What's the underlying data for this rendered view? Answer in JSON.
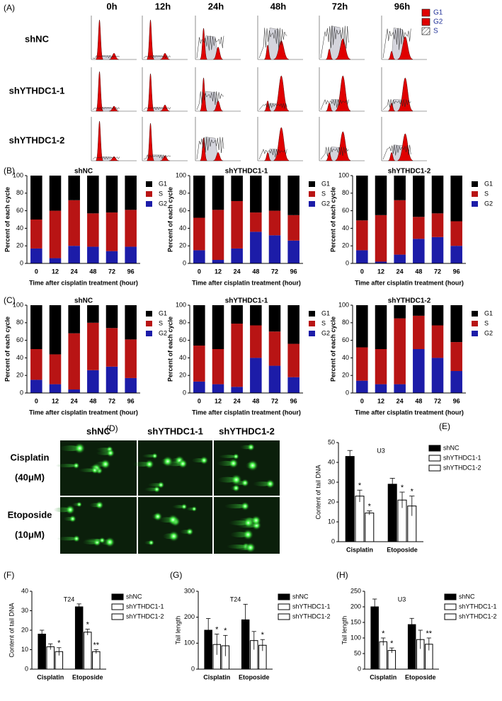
{
  "panel_a": {
    "label": "(A)",
    "columns": [
      "0h",
      "12h",
      "24h",
      "48h",
      "72h",
      "96h"
    ],
    "rows": [
      "shNC",
      "shYTHDC1-1",
      "shYTHDC1-2"
    ],
    "legend": [
      {
        "name": "G1",
        "color": "#e00000"
      },
      {
        "name": "G2",
        "color": "#e00000"
      },
      {
        "name": "S",
        "color": "hatch"
      }
    ]
  },
  "panel_d": {
    "label": "(D)",
    "columns": [
      "shNC",
      "shYTHDC1-1",
      "shYTHDC1-2"
    ],
    "rows": [
      {
        "drug": "Cisplatin",
        "dose": "(40μM)"
      },
      {
        "drug": "Etoposide",
        "dose": "(10μM)"
      }
    ]
  },
  "chart_data": [
    {
      "type": "stacked_bar",
      "label": "(B)",
      "title": "shNC",
      "x_label": "Time after cisplatin treatment (hour)",
      "y_label": "Percent of each cycle",
      "categories": [
        "0",
        "12",
        "24",
        "48",
        "72",
        "96"
      ],
      "ylim": [
        0,
        100
      ],
      "yticks": [
        0,
        20,
        40,
        60,
        80,
        100
      ],
      "series": [
        {
          "name": "G1",
          "color": "#000000",
          "values": [
            50,
            40,
            28,
            43,
            42,
            39
          ]
        },
        {
          "name": "S",
          "color": "#b81414",
          "values": [
            33,
            54,
            52,
            38,
            44,
            42
          ],
          "errors": [
            3,
            8,
            4,
            10,
            13,
            10
          ]
        },
        {
          "name": "G2",
          "color": "#1c1ca8",
          "values": [
            17,
            6,
            20,
            19,
            14,
            19
          ],
          "errors": [
            4,
            2,
            6,
            5,
            4,
            5
          ]
        }
      ]
    },
    {
      "type": "stacked_bar",
      "title": "shYTHDC1-1",
      "x_label": "Time after cisplatin treatment (hour)",
      "y_label": "Percent of each cycle",
      "categories": [
        "0",
        "12",
        "24",
        "48",
        "72",
        "96"
      ],
      "ylim": [
        0,
        100
      ],
      "yticks": [
        0,
        20,
        40,
        60,
        80,
        100
      ],
      "series": [
        {
          "name": "G1",
          "color": "#000000",
          "values": [
            48,
            39,
            29,
            42,
            40,
            45
          ]
        },
        {
          "name": "S",
          "color": "#b81414",
          "values": [
            37,
            57,
            54,
            22,
            28,
            29
          ],
          "errors": [
            5,
            3,
            8,
            8,
            2,
            4
          ]
        },
        {
          "name": "G2",
          "color": "#1c1ca8",
          "values": [
            15,
            4,
            17,
            36,
            32,
            26
          ],
          "errors": [
            4,
            1,
            7,
            12,
            8,
            12
          ]
        }
      ]
    },
    {
      "type": "stacked_bar",
      "title": "shYTHDC1-2",
      "x_label": "Time after cisplatin treatment (hour)",
      "y_label": "Percent of each cycle",
      "categories": [
        "0",
        "12",
        "24",
        "48",
        "72",
        "96"
      ],
      "ylim": [
        0,
        100
      ],
      "yticks": [
        0,
        20,
        40,
        60,
        80,
        100
      ],
      "series": [
        {
          "name": "G1",
          "color": "#000000",
          "values": [
            51,
            45,
            28,
            47,
            43,
            52
          ]
        },
        {
          "name": "S",
          "color": "#b81414",
          "values": [
            34,
            53,
            62,
            25,
            27,
            28
          ],
          "errors": [
            3,
            10,
            6,
            6,
            4,
            6
          ]
        },
        {
          "name": "G2",
          "color": "#1c1ca8",
          "values": [
            15,
            2,
            10,
            28,
            30,
            20
          ],
          "errors": [
            5,
            1,
            3,
            9,
            8,
            10
          ]
        }
      ]
    },
    {
      "type": "stacked_bar",
      "label": "(C)",
      "title": "shNC",
      "x_label": "Time after cisplatin treatment (hour)",
      "y_label": "Percent of each cycle",
      "categories": [
        "0",
        "12",
        "24",
        "48",
        "72",
        "96"
      ],
      "ylim": [
        0,
        100
      ],
      "yticks": [
        0,
        20,
        40,
        60,
        80,
        100
      ],
      "series": [
        {
          "name": "G1",
          "color": "#000000",
          "values": [
            50,
            56,
            32,
            20,
            26,
            39
          ]
        },
        {
          "name": "S",
          "color": "#b81414",
          "values": [
            35,
            34,
            64,
            54,
            44,
            44
          ],
          "errors": [
            2,
            0.5,
            2,
            6,
            1,
            4
          ]
        },
        {
          "name": "G2",
          "color": "#1c1ca8",
          "values": [
            15,
            10,
            4,
            26,
            30,
            17
          ],
          "errors": [
            3,
            1,
            2,
            8,
            6,
            3
          ]
        }
      ]
    },
    {
      "type": "stacked_bar",
      "title": "shYTHDC1-1",
      "x_label": "Time after cisplatin treatment (hour)",
      "y_label": "Percent of each cycle",
      "categories": [
        "0",
        "12",
        "24",
        "48",
        "72",
        "96"
      ],
      "ylim": [
        0,
        100
      ],
      "yticks": [
        0,
        20,
        40,
        60,
        80,
        100
      ],
      "series": [
        {
          "name": "G1",
          "color": "#000000",
          "values": [
            46,
            50,
            21,
            23,
            30,
            44
          ]
        },
        {
          "name": "S",
          "color": "#b81414",
          "values": [
            41,
            40,
            72,
            37,
            39,
            38
          ],
          "errors": [
            3,
            1,
            4,
            3,
            2,
            1
          ]
        },
        {
          "name": "G2",
          "color": "#1c1ca8",
          "values": [
            13,
            10,
            7,
            40,
            31,
            18
          ],
          "errors": [
            3,
            1,
            3,
            10,
            5,
            5
          ]
        }
      ]
    },
    {
      "type": "stacked_bar",
      "title": "shYTHDC1-2",
      "x_label": "Time after cisplatin treatment (hour)",
      "y_label": "Percent of each cycle",
      "categories": [
        "0",
        "12",
        "24",
        "48",
        "72",
        "96"
      ],
      "ylim": [
        0,
        100
      ],
      "yticks": [
        0,
        20,
        40,
        60,
        80,
        100
      ],
      "series": [
        {
          "name": "G1",
          "color": "#000000",
          "values": [
            48,
            50,
            15,
            12,
            23,
            42
          ]
        },
        {
          "name": "S",
          "color": "#b81414",
          "values": [
            38,
            40,
            75,
            38,
            37,
            33
          ],
          "errors": [
            2,
            1,
            2,
            3,
            2,
            2
          ]
        },
        {
          "name": "G2",
          "color": "#1c1ca8",
          "values": [
            14,
            10,
            10,
            50,
            40,
            25
          ],
          "errors": [
            3,
            2,
            3,
            8,
            8,
            6
          ]
        }
      ]
    },
    {
      "type": "bar",
      "label": "(E)",
      "title": "U3",
      "y_label": "Content of tail DNA",
      "categories": [
        "Cisplatin",
        "Etoposide"
      ],
      "ylim": [
        0,
        50
      ],
      "yticks": [
        0,
        10,
        20,
        30,
        40,
        50
      ],
      "series": [
        {
          "name": "shNC",
          "color": "#000000",
          "values": [
            43,
            29
          ],
          "errors": [
            3,
            3
          ],
          "annotations": [
            null,
            null
          ]
        },
        {
          "name": "shYTHDC1-1",
          "color": "#ffffff",
          "values": [
            23,
            21
          ],
          "errors": [
            3,
            4
          ],
          "annotations": [
            "*",
            "*"
          ]
        },
        {
          "name": "shYTHDC1-2",
          "color": "#ffffff",
          "values": [
            14.5,
            18
          ],
          "errors": [
            1,
            5
          ],
          "annotations": [
            "*",
            "*"
          ]
        }
      ]
    },
    {
      "type": "bar",
      "label": "(F)",
      "title": "T24",
      "y_label": "Content of tail DNA",
      "categories": [
        "Cisplatin",
        "Etoposide"
      ],
      "ylim": [
        0,
        40
      ],
      "yticks": [
        0,
        10,
        20,
        30,
        40
      ],
      "series": [
        {
          "name": "shNC",
          "color": "#000000",
          "values": [
            18,
            32
          ],
          "errors": [
            2,
            1.5
          ],
          "annotations": [
            null,
            null
          ]
        },
        {
          "name": "shYTHDC1-1",
          "color": "#ffffff",
          "values": [
            11.5,
            19
          ],
          "errors": [
            1.5,
            1.5
          ],
          "annotations": [
            null,
            "*"
          ]
        },
        {
          "name": "shYTHDC1-2",
          "color": "#ffffff",
          "values": [
            9,
            9
          ],
          "errors": [
            2,
            1
          ],
          "annotations": [
            "*",
            "**"
          ]
        }
      ]
    },
    {
      "type": "bar",
      "label": "(G)",
      "title": "T24",
      "y_label": "Tail length",
      "categories": [
        "Cisplatin",
        "Etoposide"
      ],
      "ylim": [
        0,
        300
      ],
      "yticks": [
        0,
        100,
        200,
        300
      ],
      "series": [
        {
          "name": "shNC",
          "color": "#000000",
          "values": [
            150,
            190
          ],
          "errors": [
            45,
            60
          ],
          "annotations": [
            null,
            null
          ]
        },
        {
          "name": "shYTHDC1-1",
          "color": "#ffffff",
          "values": [
            95,
            110
          ],
          "errors": [
            40,
            35
          ],
          "annotations": [
            "*",
            null
          ]
        },
        {
          "name": "shYTHDC1-2",
          "color": "#ffffff",
          "values": [
            90,
            92
          ],
          "errors": [
            40,
            22
          ],
          "annotations": [
            "*",
            "*"
          ]
        }
      ]
    },
    {
      "type": "bar",
      "label": "(H)",
      "title": "U3",
      "y_label": "Tail length",
      "categories": [
        "Cisplatin",
        "Etoposide"
      ],
      "ylim": [
        0,
        250
      ],
      "yticks": [
        0,
        50,
        100,
        150,
        200,
        250
      ],
      "series": [
        {
          "name": "shNC",
          "color": "#000000",
          "values": [
            200,
            143
          ],
          "errors": [
            25,
            20
          ],
          "annotations": [
            null,
            null
          ]
        },
        {
          "name": "shYTHDC1-1",
          "color": "#ffffff",
          "values": [
            88,
            95
          ],
          "errors": [
            12,
            30
          ],
          "annotations": [
            "*",
            null
          ]
        },
        {
          "name": "shYTHDC1-2",
          "color": "#ffffff",
          "values": [
            60,
            80
          ],
          "errors": [
            8,
            20
          ],
          "annotations": [
            "*",
            "**"
          ]
        }
      ]
    }
  ]
}
